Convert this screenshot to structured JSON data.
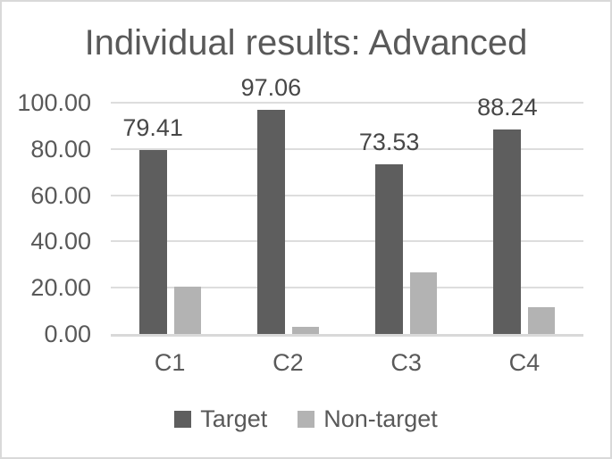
{
  "figure": {
    "background": "#ffffff",
    "border_color": "#d9d9d9",
    "gridline_color": "#dddddd",
    "axis_line_color": "#d9d9d9",
    "text_color": "#595959",
    "data_label_color": "#474747"
  },
  "chart_data": {
    "type": "bar",
    "title": "Individual results: Advanced",
    "categories": [
      "C1",
      "C2",
      "C3",
      "C4"
    ],
    "series": [
      {
        "name": "Target",
        "color": "#5e5e5e",
        "values": [
          79.41,
          97.06,
          73.53,
          88.24
        ],
        "data_labels": [
          "79.41",
          "97.06",
          "73.53",
          "88.24"
        ]
      },
      {
        "name": "Non-target",
        "color": "#b3b3b3",
        "values": [
          20.59,
          2.94,
          26.47,
          11.76
        ],
        "data_labels": []
      }
    ],
    "xlabel": "",
    "ylabel": "",
    "ylim": [
      0,
      100
    ],
    "ytick_labels": [
      "100.00",
      "80.00",
      "60.00",
      "40.00",
      "20.00",
      "0.00"
    ],
    "ytick_values": [
      100,
      80,
      60,
      40,
      20,
      0
    ],
    "grid": true,
    "legend_position": "bottom",
    "legend_items": [
      {
        "label": "Target",
        "color": "#5e5e5e"
      },
      {
        "label": "Non-target",
        "color": "#b3b3b3"
      }
    ]
  }
}
